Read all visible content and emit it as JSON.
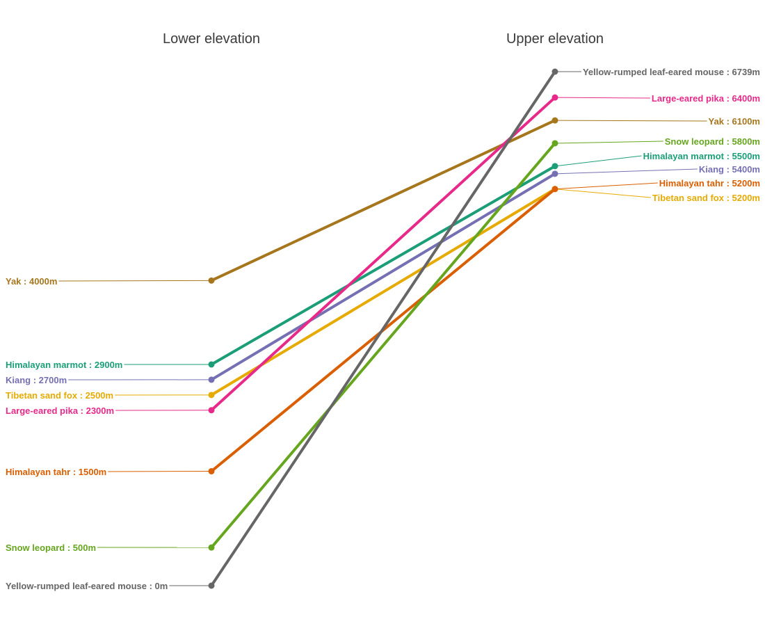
{
  "chart_data": {
    "type": "slope",
    "x": [
      "Lower elevation",
      "Upper elevation"
    ],
    "ylim": [
      0,
      6739
    ],
    "grid": false,
    "legend": "none",
    "series": [
      {
        "name": "Yak",
        "values": [
          4000,
          6100
        ],
        "color": "#A6761D",
        "lower_label": "Yak : 4000m",
        "upper_label": "Yak : 6100m"
      },
      {
        "name": "Himalayan marmot",
        "values": [
          2900,
          5500
        ],
        "color": "#1B9E77",
        "lower_label": "Himalayan marmot : 2900m",
        "upper_label": "Himalayan marmot : 5500m"
      },
      {
        "name": "Kiang",
        "values": [
          2700,
          5400
        ],
        "color": "#7570B3",
        "lower_label": "Kiang : 2700m",
        "upper_label": "Kiang : 5400m"
      },
      {
        "name": "Tibetan sand fox",
        "values": [
          2500,
          5200
        ],
        "color": "#E6AB02",
        "lower_label": "Tibetan sand fox : 2500m",
        "upper_label": "Tibetan sand fox : 5200m"
      },
      {
        "name": "Large-eared pika",
        "values": [
          2300,
          6400
        ],
        "color": "#E7298A",
        "lower_label": "Large-eared pika : 2300m",
        "upper_label": "Large-eared pika : 6400m"
      },
      {
        "name": "Himalayan tahr",
        "values": [
          1500,
          5200
        ],
        "color": "#D95F02",
        "lower_label": "Himalayan tahr : 1500m",
        "upper_label": "Himalayan tahr : 5200m"
      },
      {
        "name": "Snow leopard",
        "values": [
          500,
          5800
        ],
        "color": "#66A61E",
        "lower_label": "Snow leopard : 500m",
        "upper_label": "Snow leopard : 5800m"
      },
      {
        "name": "Yellow-rumped leaf-eared mouse",
        "values": [
          0,
          6739
        ],
        "color": "#666666",
        "lower_label": "Yellow-rumped leaf-eared mouse : 0m",
        "upper_label": "Yellow-rumped leaf-eared mouse : 6739m"
      }
    ]
  }
}
